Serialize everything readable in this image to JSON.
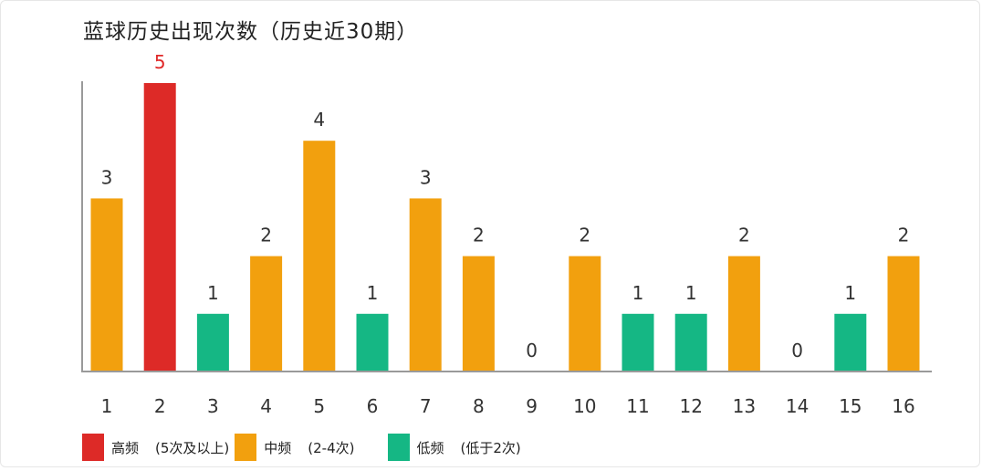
{
  "chart_data": {
    "type": "bar",
    "title": "蓝球历史出现次数（历史近30期）",
    "categories": [
      "1",
      "2",
      "3",
      "4",
      "5",
      "6",
      "7",
      "8",
      "9",
      "10",
      "11",
      "12",
      "13",
      "14",
      "15",
      "16"
    ],
    "values": [
      3,
      5,
      1,
      2,
      4,
      1,
      3,
      2,
      0,
      2,
      1,
      1,
      2,
      0,
      1,
      2
    ],
    "ylim": [
      0,
      5
    ],
    "grid": false,
    "legend_position": "bottom-left",
    "colors": {
      "high": "#dd2a27",
      "mid": "#f2a00e",
      "low": "#15b784"
    },
    "legend": [
      {
        "key": "high",
        "name": "高频",
        "range": "(5次及以上)"
      },
      {
        "key": "mid",
        "name": "中频",
        "range": "(2-4次)"
      },
      {
        "key": "low",
        "name": "低频",
        "range": "(低于2次)"
      }
    ]
  }
}
